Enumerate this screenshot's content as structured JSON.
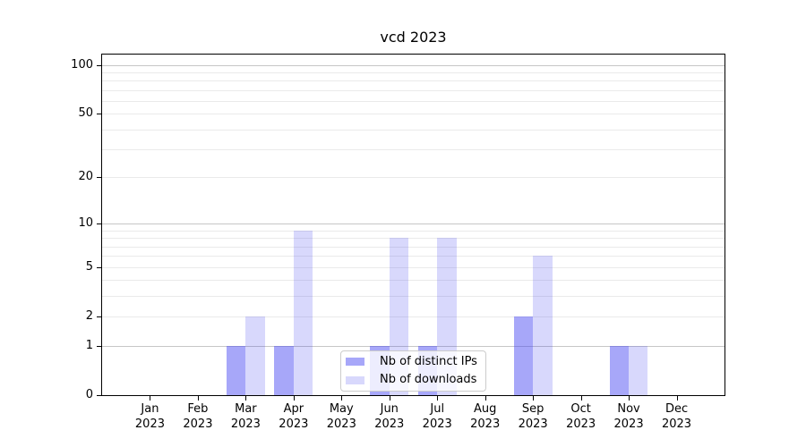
{
  "title": "vcd 2023",
  "chart_data": {
    "type": "bar",
    "title": "vcd 2023",
    "categories": [
      "Jan",
      "Feb",
      "Mar",
      "Apr",
      "May",
      "Jun",
      "Jul",
      "Aug",
      "Sep",
      "Oct",
      "Nov",
      "Dec"
    ],
    "x_label_line2": "2023",
    "series": [
      {
        "name": "Nb of distinct IPs",
        "color": "rgba(60,60,242,0.45)",
        "values": [
          0,
          0,
          1,
          1,
          0,
          1,
          1,
          0,
          2,
          0,
          1,
          0
        ]
      },
      {
        "name": "Nb of downloads",
        "color": "rgba(60,60,242,0.20)",
        "values": [
          0,
          0,
          2,
          9,
          0,
          8,
          8,
          0,
          6,
          0,
          1,
          0
        ]
      }
    ],
    "yscale": "log1p",
    "ylim": [
      0,
      116
    ],
    "y_ticks": [
      0,
      1,
      2,
      5,
      10,
      20,
      50,
      100
    ],
    "grid_major_values": [
      1,
      10,
      100
    ],
    "grid_minor_values": [
      2,
      3,
      4,
      5,
      6,
      7,
      8,
      9,
      20,
      30,
      40,
      50,
      60,
      70,
      80,
      90
    ],
    "legend_position": "lower center",
    "xlabel": "",
    "ylabel": ""
  },
  "colors": {
    "background": "#ffffff",
    "axis": "#000000",
    "text": "#000000",
    "grid_major": "#c6c6c6",
    "grid_minor": "#eaeaea",
    "legend_border": "#cccccc",
    "legend_background": "rgba(255,255,255,0.8)"
  }
}
